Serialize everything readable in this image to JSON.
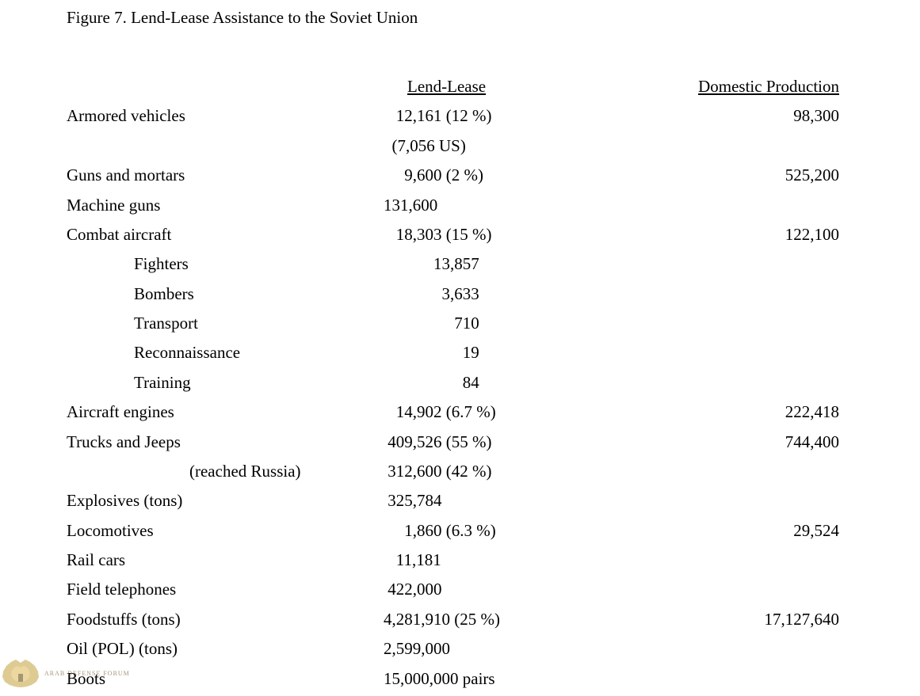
{
  "title": "Figure 7. Lend-Lease Assistance to the Soviet Union",
  "headers": {
    "lendlease": "Lend-Lease",
    "domestic": "Domestic Production"
  },
  "rows": [
    {
      "label": "Armored vehicles",
      "ll": "   12,161 (12 %)",
      "dp": "98,300",
      "indent": 0
    },
    {
      "label": "",
      "ll": "  (7,056 US)",
      "dp": "",
      "indent": 0,
      "is_sub": true
    },
    {
      "label": "Guns and mortars",
      "ll": "     9,600 (2 %)",
      "dp": "525,200",
      "indent": 0
    },
    {
      "label": "Machine guns",
      "ll": "131,600",
      "dp": "",
      "indent": 0
    },
    {
      "label": "Combat aircraft",
      "ll": "   18,303 (15 %)",
      "dp": "122,100",
      "indent": 0
    },
    {
      "label": "Fighters",
      "ll": "            13,857",
      "dp": "",
      "indent": 1
    },
    {
      "label": "Bombers",
      "ll": "              3,633",
      "dp": "",
      "indent": 1
    },
    {
      "label": "Transport",
      "ll": "                 710",
      "dp": "",
      "indent": 1
    },
    {
      "label": "Reconnaissance",
      "ll": "                   19",
      "dp": "",
      "indent": 1
    },
    {
      "label": "Training",
      "ll": "                   84",
      "dp": "",
      "indent": 1
    },
    {
      "label": "Aircraft engines",
      "ll": "   14,902 (6.7 %)",
      "dp": "222,418",
      "indent": 0
    },
    {
      "label": "Trucks and Jeeps",
      "ll": " 409,526 (55 %)",
      "dp": "744,400",
      "indent": 0
    },
    {
      "label": "(reached Russia)",
      "ll": " 312,600 (42 %)",
      "dp": "",
      "indent": 2
    },
    {
      "label": "Explosives (tons)",
      "ll": " 325,784",
      "dp": "",
      "indent": 0
    },
    {
      "label": "Locomotives",
      "ll": "     1,860 (6.3 %)",
      "dp": "29,524",
      "indent": 0
    },
    {
      "label": "Rail cars",
      "ll": "   11,181",
      "dp": "",
      "indent": 0
    },
    {
      "label": "Field telephones",
      "ll": " 422,000",
      "dp": "",
      "indent": 0
    },
    {
      "label": "Foodstuffs (tons)",
      "ll": "4,281,910 (25 %)",
      "dp": "17,127,640",
      "indent": 0
    },
    {
      "label": "Oil (POL) (tons)",
      "ll": "2,599,000",
      "dp": "",
      "indent": 0
    },
    {
      "label": "Boots",
      "ll": "15,000,000 pairs",
      "dp": "",
      "indent": 0
    }
  ],
  "watermark": {
    "line1": "ARAB DEFENSE FORUM"
  },
  "style": {
    "font_family": "Times New Roman",
    "font_size_pt": 16,
    "text_color": "#000000",
    "background_color": "#ffffff",
    "watermark_color": "#7b6a3c"
  }
}
